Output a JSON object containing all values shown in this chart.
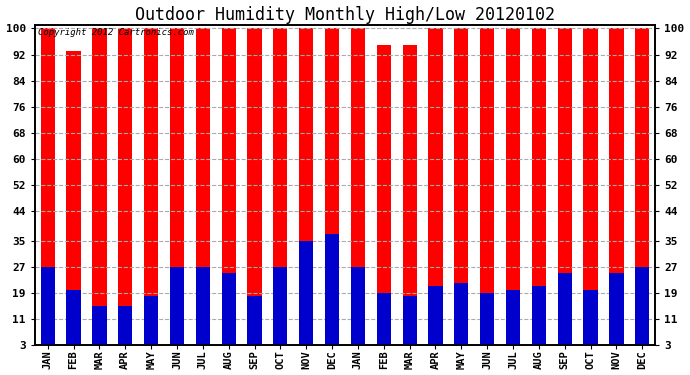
{
  "title": "Outdoor Humidity Monthly High/Low 20120102",
  "copyright": "Copyright 2012 Cartronics.com",
  "months": [
    "JAN",
    "FEB",
    "MAR",
    "APR",
    "MAY",
    "JUN",
    "JUL",
    "AUG",
    "SEP",
    "OCT",
    "NOV",
    "DEC",
    "JAN",
    "FEB",
    "MAR",
    "APR",
    "MAY",
    "JUN",
    "JUL",
    "AUG",
    "SEP",
    "OCT",
    "NOV",
    "DEC"
  ],
  "high_values": [
    100,
    93,
    100,
    100,
    100,
    100,
    100,
    100,
    100,
    100,
    100,
    100,
    100,
    95,
    95,
    100,
    100,
    100,
    100,
    100,
    100,
    100,
    100,
    100
  ],
  "low_values": [
    27,
    20,
    15,
    15,
    18,
    27,
    27,
    25,
    18,
    27,
    35,
    37,
    27,
    19,
    18,
    21,
    22,
    19,
    20,
    21,
    25,
    20,
    25,
    27
  ],
  "high_color": "#ff0000",
  "low_color": "#0000cc",
  "bg_color": "#ffffff",
  "yticks": [
    3,
    11,
    19,
    27,
    35,
    44,
    52,
    60,
    68,
    76,
    84,
    92,
    100
  ],
  "ymin": 3,
  "ymax": 101,
  "title_fontsize": 12,
  "grid_color": "#aaaaaa",
  "bar_width": 0.55
}
